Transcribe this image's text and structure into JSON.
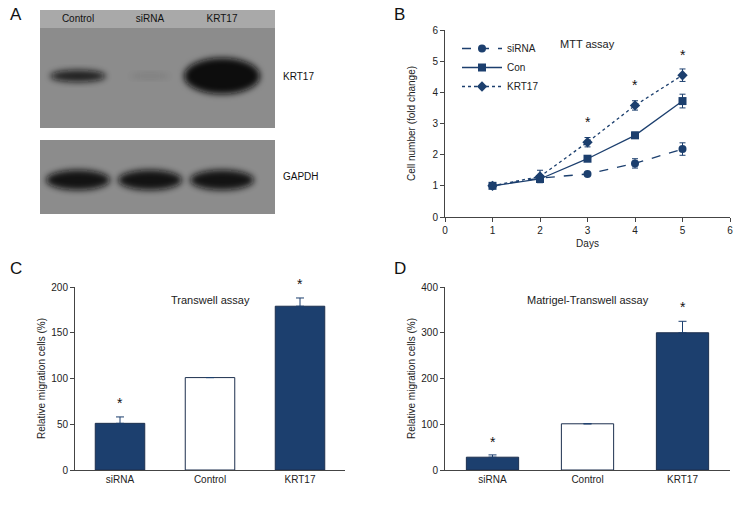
{
  "chart_data": [
    {
      "panel": "A",
      "type": "western_blot",
      "lanes": [
        "Control",
        "siRNA",
        "KRT17"
      ],
      "rows": [
        "KRT17",
        "GAPDH"
      ]
    },
    {
      "panel": "B",
      "type": "line",
      "title": "MTT assay",
      "x_label": "Days",
      "y_label": "Cell number (fold change)",
      "x": [
        1,
        2,
        3,
        4,
        5
      ],
      "xlim": [
        0,
        6
      ],
      "xticks": [
        0,
        1,
        2,
        3,
        4,
        5,
        6
      ],
      "ylim": [
        0,
        6
      ],
      "yticks": [
        0,
        1,
        2,
        3,
        4,
        5,
        6
      ],
      "legend": "upper left",
      "color": "#1c3f6e",
      "series": [
        {
          "name": "siRNA",
          "marker": "circle",
          "line_style": "dashed",
          "values": [
            1,
            1.25,
            1.38,
            1.72,
            2.18
          ],
          "errors": [
            0.02,
            0.05,
            0.05,
            0.15,
            0.2
          ]
        },
        {
          "name": "Con",
          "marker": "square",
          "line_style": "solid",
          "values": [
            1,
            1.22,
            1.87,
            2.62,
            3.72
          ],
          "errors": [
            0.02,
            0.05,
            0.08,
            0.1,
            0.22
          ]
        },
        {
          "name": "KRT17",
          "marker": "diamond",
          "line_style": "dotted",
          "values": [
            1,
            1.3,
            2.4,
            3.58,
            4.55
          ],
          "errors": [
            0.03,
            0.2,
            0.15,
            0.15,
            0.2
          ]
        }
      ],
      "annotations": [
        {
          "x": 3,
          "y": 2.72,
          "text": "*"
        },
        {
          "x": 4,
          "y": 3.9,
          "text": "*"
        },
        {
          "x": 5,
          "y": 4.88,
          "text": "*"
        }
      ]
    },
    {
      "panel": "C",
      "type": "bar",
      "title": "Transwell assay",
      "y_label": "Relative migration cells (%)",
      "categories": [
        "siRNA",
        "Control",
        "KRT17"
      ],
      "values": [
        51,
        101,
        179
      ],
      "errors": [
        7,
        0,
        9
      ],
      "colors": [
        "#1c3f6e",
        "#ffffff",
        "#1c3f6e"
      ],
      "ylim": [
        0,
        200
      ],
      "yticks": [
        0,
        50,
        100,
        150,
        200
      ],
      "annotations": [
        {
          "category": "siRNA",
          "y": 62,
          "text": "*"
        },
        {
          "category": "KRT17",
          "y": 192,
          "text": "*"
        }
      ]
    },
    {
      "panel": "D",
      "type": "bar",
      "title": "Matrigel-Transwell assay",
      "y_label": "Relative migration cells (%)",
      "categories": [
        "siRNA",
        "Control",
        "KRT17"
      ],
      "values": [
        28,
        101,
        300
      ],
      "errors": [
        5,
        0,
        25
      ],
      "colors": [
        "#1c3f6e",
        "#ffffff",
        "#1c3f6e"
      ],
      "ylim": [
        0,
        400
      ],
      "yticks": [
        0,
        100,
        200,
        300,
        400
      ],
      "annotations": [
        {
          "category": "siRNA",
          "y": 40,
          "text": "*"
        },
        {
          "category": "KRT17",
          "y": 335,
          "text": "*"
        }
      ]
    }
  ]
}
